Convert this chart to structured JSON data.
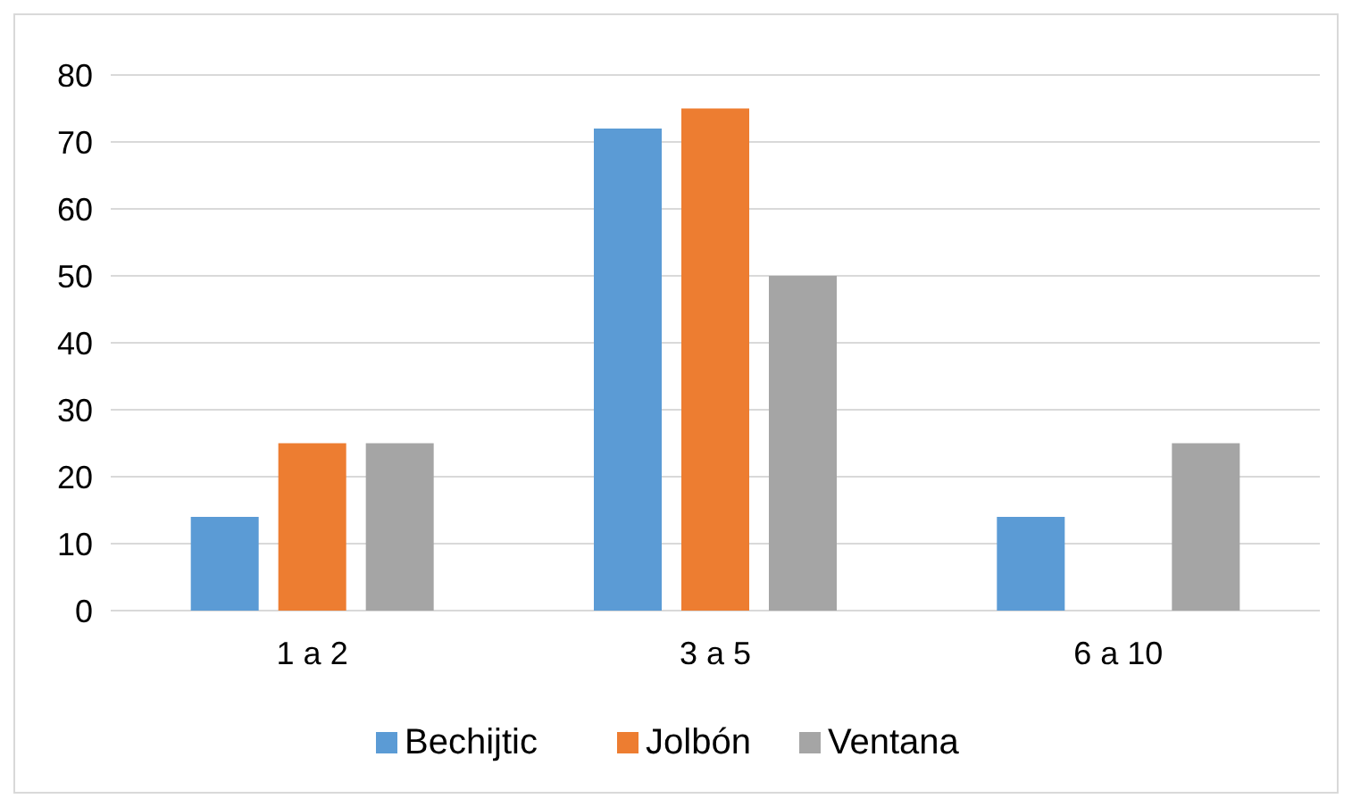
{
  "chart_data": {
    "type": "bar",
    "categories": [
      "1 a 2",
      "3 a 5",
      "6 a 10"
    ],
    "series": [
      {
        "name": "Bechijtic",
        "color": "#5b9bd5",
        "values": [
          14,
          72,
          14
        ]
      },
      {
        "name": "Jolbón",
        "color": "#ed7d31",
        "values": [
          25,
          75,
          0
        ]
      },
      {
        "name": "Ventana",
        "color": "#a5a5a5",
        "values": [
          25,
          50,
          25
        ]
      }
    ],
    "ylim": [
      0,
      80
    ],
    "yticks": [
      0,
      10,
      20,
      30,
      40,
      50,
      60,
      70,
      80
    ],
    "grid": "y",
    "legend": "bottom"
  }
}
